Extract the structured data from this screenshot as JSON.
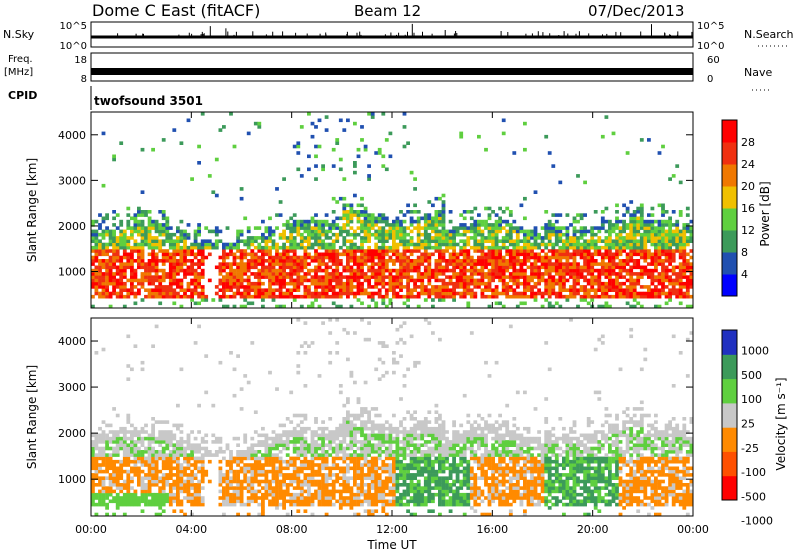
{
  "header": {
    "title": "Dome C East (fitACF)",
    "beam": "Beam 12",
    "date": "07/Dec/2013"
  },
  "status_panels": {
    "nsky": {
      "label": "N.Sky",
      "ticks": [
        "10^5",
        "10^0"
      ]
    },
    "nsearch": {
      "label": "N.Search",
      "ticks": [
        "10^5",
        "10^0"
      ]
    },
    "freq": {
      "label_line1": "Freq.",
      "label_line2": "[MHz]",
      "ticks": [
        "18",
        "8"
      ]
    },
    "nave": {
      "label": "Nave",
      "ticks": [
        "60",
        "0"
      ]
    },
    "cpid": {
      "label": "CPID",
      "program": "twofsound 3501"
    }
  },
  "colors": {
    "power": [
      "#0000ff",
      "#2050b0",
      "#3c9a5a",
      "#5fcf3f",
      "#f0c000",
      "#f07800",
      "#f03010",
      "#ff0000"
    ],
    "velocity": [
      "#2030c0",
      "#3c9a5a",
      "#5fcf3f",
      "#c8c8c8",
      "#ff8a00",
      "#ff5000",
      "#ff0000"
    ]
  },
  "chart_data": [
    {
      "type": "heatmap",
      "quantity": "power",
      "xlabel": "",
      "ylabel": "Slant Range [km]",
      "yticks": [
        "1000",
        "2000",
        "3000",
        "4000"
      ],
      "ylim": [
        200,
        4500
      ],
      "xlim": [
        0,
        24
      ],
      "colorbar": {
        "label": "Power [dB]",
        "ticks": [
          "4",
          "8",
          "12",
          "16",
          "20",
          "24",
          "28"
        ],
        "range": [
          0,
          32
        ]
      }
    },
    {
      "type": "heatmap",
      "quantity": "velocity",
      "xlabel": "Time UT",
      "xticks": [
        "00:00",
        "04:00",
        "08:00",
        "12:00",
        "16:00",
        "20:00",
        "00:00"
      ],
      "ylabel": "Slant Range [km]",
      "yticks": [
        "1000",
        "2000",
        "3000",
        "4000"
      ],
      "ylim": [
        200,
        4500
      ],
      "xlim": [
        0,
        24
      ],
      "colorbar": {
        "label": "Velocity [m s⁻¹]",
        "ticks": [
          "1000",
          "500",
          "100",
          "25",
          "-25",
          "-100",
          "-500",
          "-1000"
        ]
      }
    }
  ]
}
